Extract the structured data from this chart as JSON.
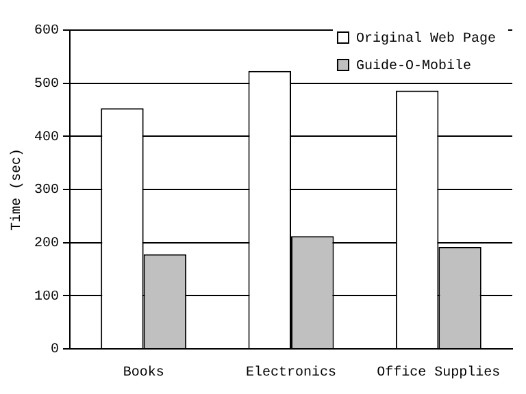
{
  "chart_data": {
    "type": "bar",
    "ylabel": "Time (sec)",
    "categories": [
      "Books",
      "Electronics",
      "Office Supplies"
    ],
    "series": [
      {
        "name": "Original Web Page",
        "color": "#ffffff",
        "values": [
          453,
          523,
          486
        ]
      },
      {
        "name": "Guide-O-Mobile",
        "color": "#c0c0c0",
        "values": [
          178,
          212,
          192
        ]
      }
    ],
    "ylim": [
      0,
      600
    ],
    "yticks": [
      0,
      100,
      200,
      300,
      400,
      500,
      600
    ],
    "grid": "y",
    "legend": "top right"
  }
}
